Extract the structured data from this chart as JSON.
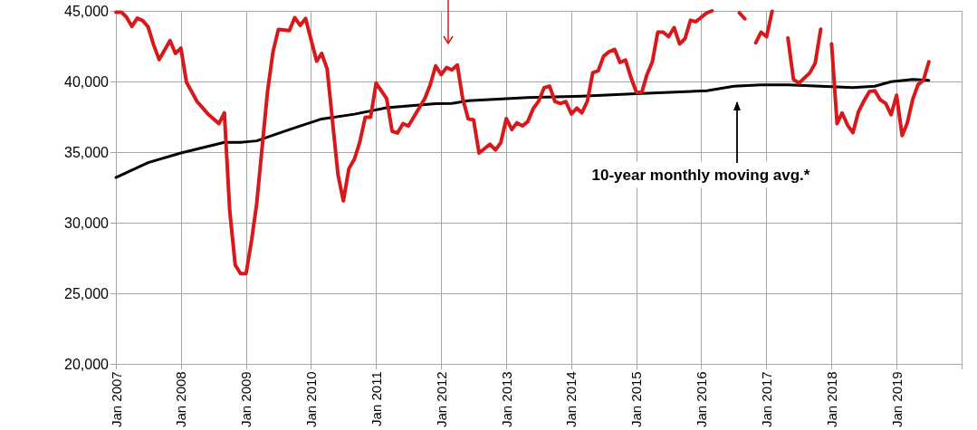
{
  "chart_data": {
    "type": "line",
    "xlim": [
      "2007-01",
      "2020-01"
    ],
    "xticks": [
      {
        "value": "2007-01",
        "label": "Jan 2007"
      },
      {
        "value": "2008-01",
        "label": "Jan 2008"
      },
      {
        "value": "2009-01",
        "label": "Jan 2009"
      },
      {
        "value": "2010-01",
        "label": "Jan 2010"
      },
      {
        "value": "2011-01",
        "label": "Jan 2011"
      },
      {
        "value": "2012-01",
        "label": "Jan 2012"
      },
      {
        "value": "2013-01",
        "label": "Jan 2013"
      },
      {
        "value": "2014-01",
        "label": "Jan 2014"
      },
      {
        "value": "2015-01",
        "label": "Jan 2015"
      },
      {
        "value": "2016-01",
        "label": "Jan 2016"
      },
      {
        "value": "2017-01",
        "label": "Jan 2017"
      },
      {
        "value": "2018-01",
        "label": "Jan 2018"
      },
      {
        "value": "2019-01",
        "label": "Jan 2019"
      },
      {
        "value": "2020-01",
        "label": null
      }
    ],
    "ylim": [
      20000,
      45000
    ],
    "yticks": [
      {
        "value": 20000,
        "label": "20,000"
      },
      {
        "value": 25000,
        "label": "25,000"
      },
      {
        "value": 30000,
        "label": "30,000"
      },
      {
        "value": 35000,
        "label": "35,000"
      },
      {
        "value": 40000,
        "label": "40,000"
      },
      {
        "value": 45000,
        "label": "45,000"
      }
    ],
    "grid": true,
    "marker": "none",
    "line_style": "solid",
    "series": [
      {
        "color": "#d7191c",
        "x": [
          "2007-01",
          "2007-02",
          "2007-03",
          "2007-04",
          "2007-05",
          "2007-06",
          "2007-07",
          "2007-08",
          "2007-09",
          "2007-11",
          "2007-12",
          "2008-01",
          "2008-02",
          "2008-04",
          "2008-05",
          "2008-06",
          "2008-08",
          "2008-09",
          "2008-10",
          "2008-11",
          "2008-12",
          "2009-01",
          "2009-02",
          "2009-03",
          "2009-05",
          "2009-06",
          "2009-07",
          "2009-09",
          "2009-10",
          "2009-11",
          "2009-12",
          "2010-02",
          "2010-03",
          "2010-04",
          "2010-06",
          "2010-07",
          "2010-08",
          "2010-09",
          "2010-10",
          "2010-11",
          "2010-12",
          "2011-01",
          "2011-03",
          "2011-04",
          "2011-05",
          "2011-06",
          "2011-07",
          "2011-10",
          "2011-11",
          "2011-12",
          "2012-01",
          "2012-02",
          "2012-03",
          "2012-04",
          "2012-05",
          "2012-06",
          "2012-07",
          "2012-08",
          "2012-10",
          "2012-11",
          "2012-12",
          "2013-01",
          "2013-02",
          "2013-03",
          "2013-04",
          "2013-05",
          "2013-06",
          "2013-07",
          "2013-08",
          "2013-09",
          "2013-10",
          "2013-11",
          "2013-12",
          "2014-01",
          "2014-02",
          "2014-03",
          "2014-04",
          "2014-05",
          "2014-06",
          "2014-07",
          "2014-08",
          "2014-09",
          "2014-10",
          "2014-11",
          "2014-12",
          "2015-01",
          "2015-02",
          "2015-03",
          "2015-04",
          "2015-05",
          "2015-06",
          "2015-07",
          "2015-08",
          "2015-09",
          "2015-10",
          "2015-11",
          "2015-12",
          "2016-01",
          "2016-02",
          "2016-03",
          "2016-05",
          "2016-08",
          "2016-09",
          "2016-10",
          "2016-11",
          "2016-12",
          "2017-01",
          "2017-02",
          "2017-04",
          "2017-05",
          "2017-06",
          "2017-07",
          "2017-09",
          "2017-10",
          "2017-11",
          "2017-12",
          "2018-01",
          "2018-02",
          "2018-03",
          "2018-04",
          "2018-05",
          "2018-06",
          "2018-07",
          "2018-08",
          "2018-09",
          "2018-10",
          "2018-11",
          "2018-12",
          "2019-01",
          "2019-02",
          "2019-03",
          "2019-04",
          "2019-05",
          "2019-06",
          "2019-07"
        ],
        "values": [
          44900,
          44900,
          44570,
          43900,
          44480,
          44300,
          43860,
          42590,
          41550,
          42900,
          41990,
          42360,
          39960,
          38580,
          38150,
          37700,
          37020,
          37780,
          30860,
          27020,
          26410,
          26410,
          28790,
          31300,
          39260,
          42100,
          43680,
          43600,
          44520,
          43970,
          44460,
          41440,
          41990,
          40890,
          33400,
          31560,
          33830,
          34510,
          35700,
          37470,
          37470,
          39890,
          38790,
          36480,
          36360,
          37020,
          36850,
          38790,
          39780,
          41110,
          40490,
          40990,
          40820,
          41170,
          38790,
          37360,
          37290,
          34940,
          35560,
          35160,
          35680,
          37380,
          36600,
          37080,
          36860,
          37160,
          38080,
          38600,
          39560,
          39670,
          38580,
          38440,
          38580,
          37710,
          38120,
          37780,
          38610,
          40620,
          40770,
          41790,
          42110,
          42280,
          41350,
          41520,
          40310,
          39240,
          39240,
          40470,
          41400,
          43490,
          43490,
          43170,
          43810,
          42660,
          43030,
          44340,
          44230,
          44550,
          44860,
          45000,
          null,
          44860,
          44440,
          null,
          42740,
          43490,
          43170,
          44970,
          null,
          43080,
          40160,
          39880,
          40620,
          41300,
          43700,
          null,
          42660,
          37020,
          37780,
          36910,
          36380,
          37870,
          38610,
          39290,
          39350,
          38710,
          38440,
          37650,
          39030,
          36170,
          37020,
          38710,
          39770,
          40090,
          41400
        ]
      },
      {
        "color": "#000000",
        "x": [
          "2007-01",
          "2007-07",
          "2008-01",
          "2008-09",
          "2008-12",
          "2009-03",
          "2009-09",
          "2010-03",
          "2010-09",
          "2011-03",
          "2011-12",
          "2012-03",
          "2012-06",
          "2013-01",
          "2013-05",
          "2014-03",
          "2015-01",
          "2016-02",
          "2016-07",
          "2016-12",
          "2017-05",
          "2018-01",
          "2018-05",
          "2018-09",
          "2018-12",
          "2019-04",
          "2019-07"
        ],
        "values": [
          33210,
          34260,
          34940,
          35700,
          35700,
          35800,
          36600,
          37350,
          37690,
          38150,
          38440,
          38450,
          38640,
          38790,
          38860,
          38970,
          39140,
          39350,
          39670,
          39770,
          39770,
          39630,
          39570,
          39670,
          39990,
          40150,
          40090
        ]
      }
    ],
    "annotations": [
      "10-year monthly moving avg.*"
    ]
  }
}
